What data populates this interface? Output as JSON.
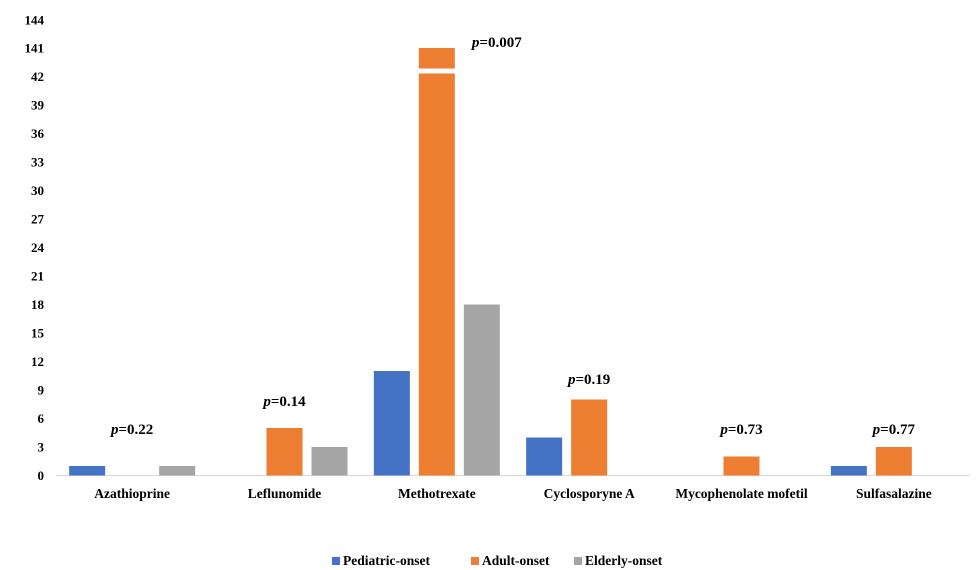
{
  "chart_data": {
    "type": "bar",
    "title": "",
    "xlabel": "",
    "ylabel": "",
    "axis_break": true,
    "y_ticks": [
      "0",
      "3",
      "6",
      "9",
      "12",
      "15",
      "18",
      "21",
      "24",
      "27",
      "30",
      "33",
      "36",
      "39",
      "42",
      "141",
      "144"
    ],
    "categories": [
      "Azathioprine",
      "Leflunomide",
      "Methotrexate",
      "Cyclosporyne A",
      "Mycophenolate mofetil",
      "Sulfasalazine"
    ],
    "series": [
      {
        "name": "Pediatric-onset",
        "color": "#4472c4",
        "values": [
          1,
          0,
          11,
          4,
          0,
          1
        ]
      },
      {
        "name": "Adult-onset",
        "color": "#ed7d31",
        "values": [
          0,
          5,
          141,
          8,
          2,
          3
        ]
      },
      {
        "name": "Elderly-onset",
        "color": "#a5a5a5",
        "values": [
          1,
          3,
          18,
          0,
          0,
          0
        ]
      }
    ],
    "annotations": [
      {
        "category": "Azathioprine",
        "p_label": "p",
        "value_label": "=0.22"
      },
      {
        "category": "Leflunomide",
        "p_label": "p",
        "value_label": "=0.14"
      },
      {
        "category": "Methotrexate",
        "p_label": "p",
        "value_label": "=0.007"
      },
      {
        "category": "Cyclosporyne A",
        "p_label": "p",
        "value_label": "=0.19"
      },
      {
        "category": "Mycophenolate mofetil",
        "p_label": "p",
        "value_label": "=0.73"
      },
      {
        "category": "Sulfasalazine",
        "p_label": "p",
        "value_label": "=0.77"
      }
    ],
    "legend_position": "bottom",
    "grid": false
  }
}
